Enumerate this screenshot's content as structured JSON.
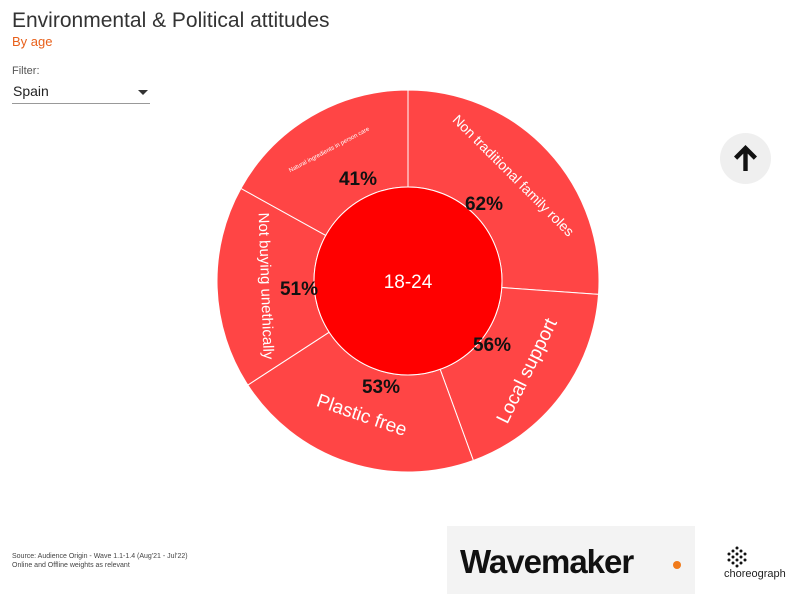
{
  "header": {
    "title": "Environmental & Political attitudes",
    "subtitle": "By age"
  },
  "filter": {
    "label": "Filter:",
    "value": "Spain"
  },
  "chart_data": {
    "type": "sunburst",
    "center_label": "18-24",
    "segments": [
      {
        "name": "Non traditional family roles",
        "value": 62,
        "label": "62%"
      },
      {
        "name": "Local support",
        "value": 56,
        "label": "56%"
      },
      {
        "name": "Plastic free",
        "value": 53,
        "label": "53%"
      },
      {
        "name": "Not buying unethically",
        "value": 51,
        "label": "51%"
      },
      {
        "name": "Natural ingredients in person care",
        "value": 41,
        "label": "41%"
      }
    ],
    "colors": {
      "inner": "#ff0000",
      "outer": "#ff4545",
      "border": "#ffffff"
    }
  },
  "footer": {
    "source_line1": "Source: Audience Origin - Wave 1.1-1.4 (Aug'21 - Jul'22)",
    "source_line2": "Online and Offline weights as relevant",
    "wavemaker": "Wavemaker",
    "choreograph": "choreograph"
  }
}
